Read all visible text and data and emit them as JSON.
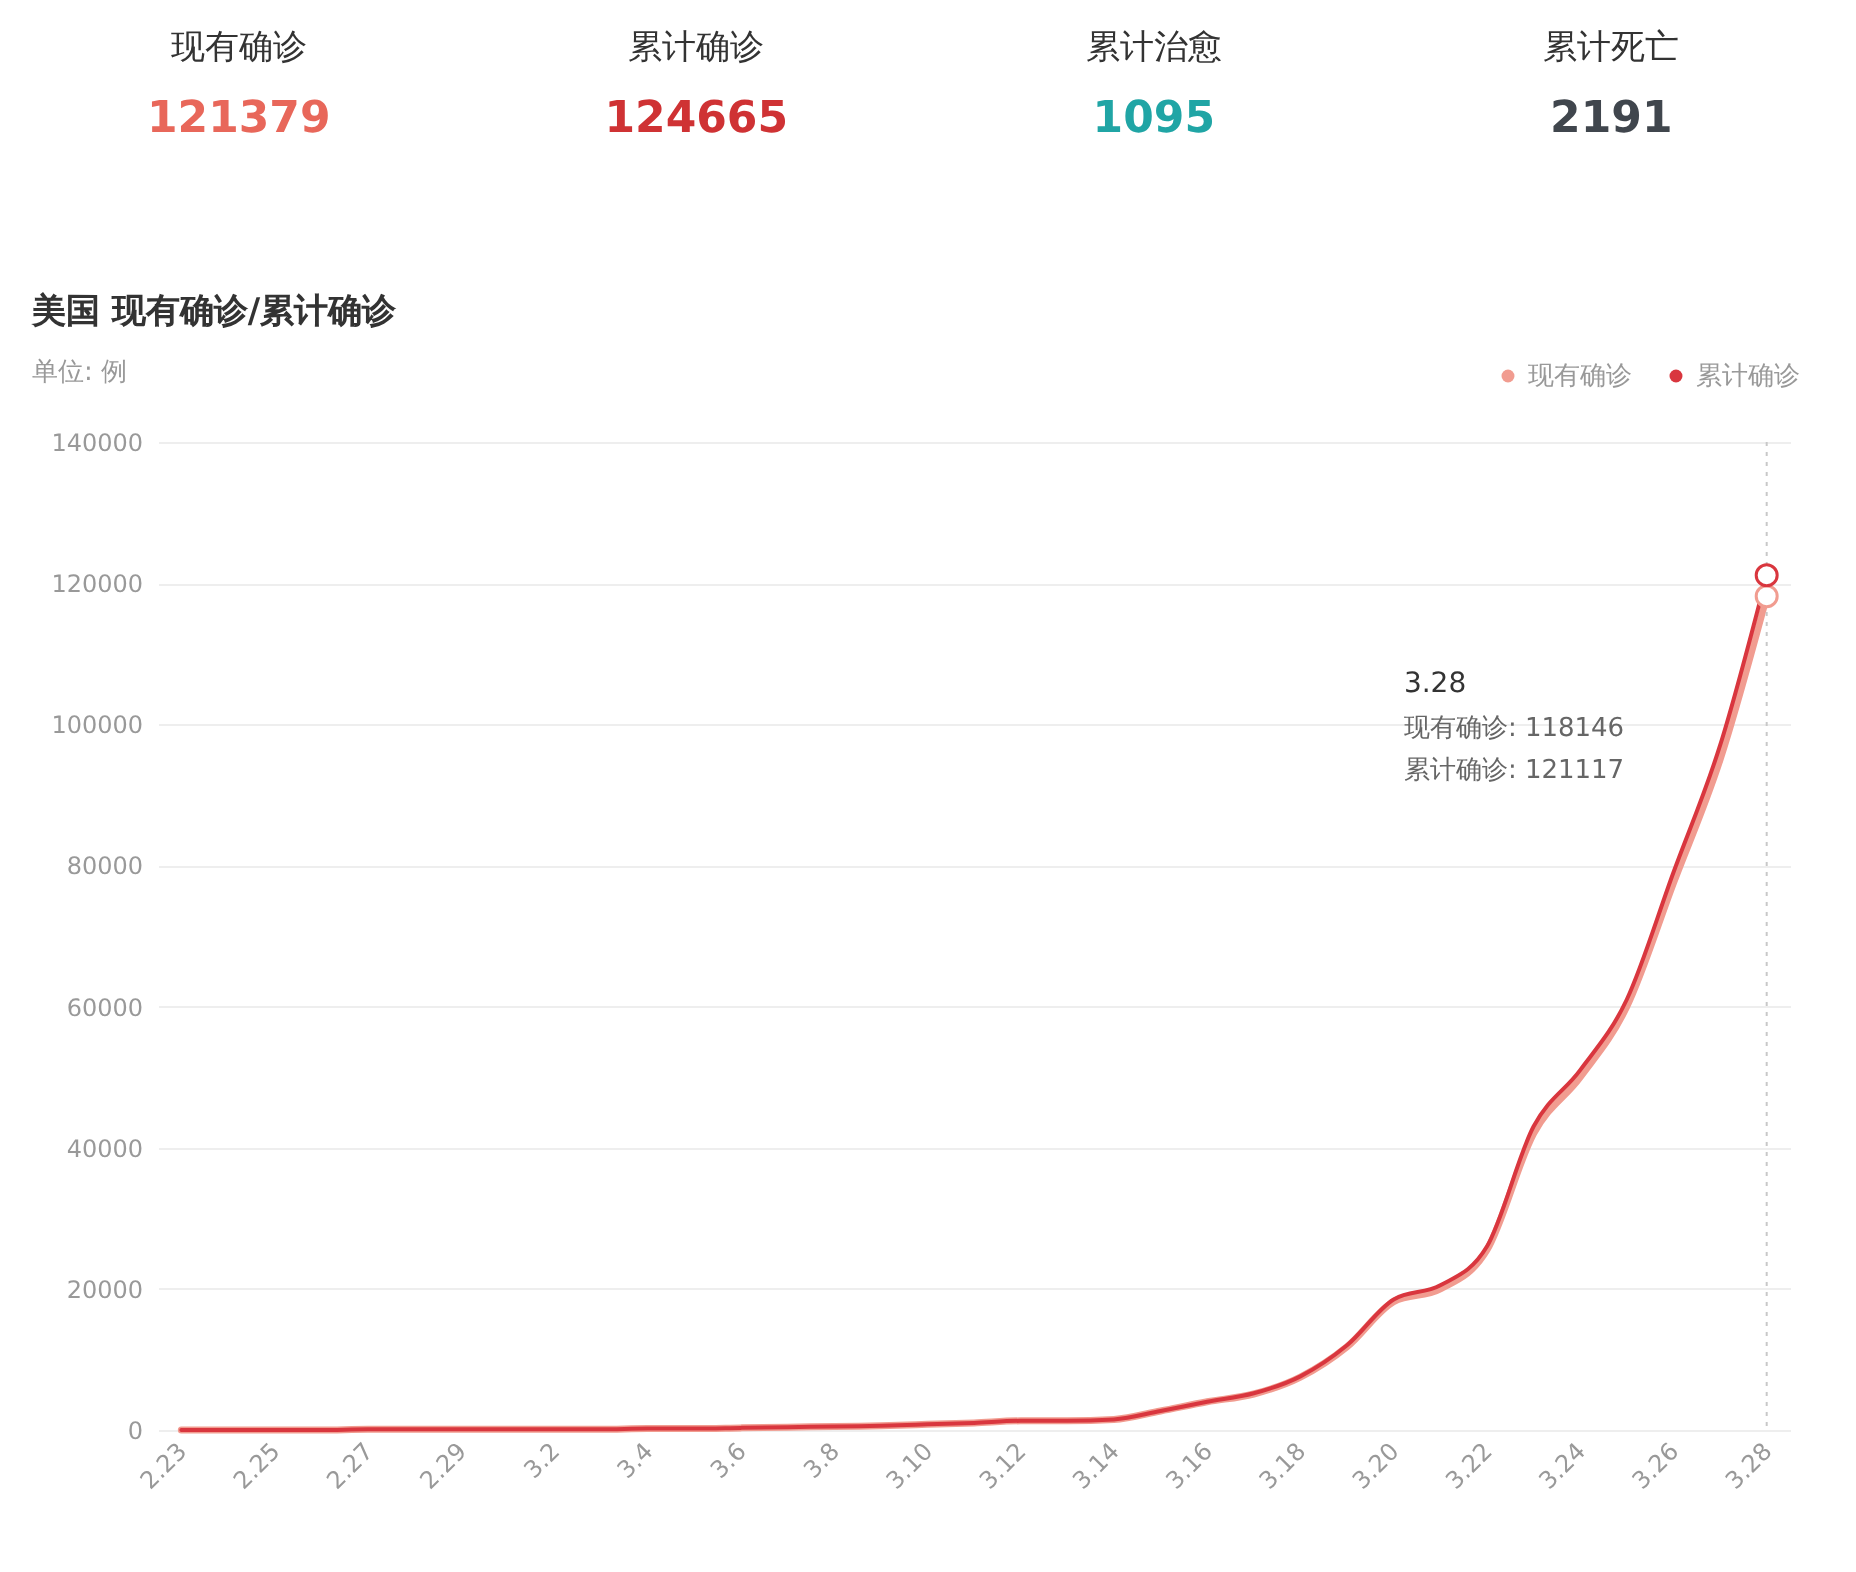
{
  "chart_data": [
    {
      "type": "other",
      "categories": [
        "现有确诊",
        "累计确诊",
        "累计治愈",
        "累计死亡"
      ],
      "values": [
        121379,
        124665,
        1095,
        2191
      ],
      "colors": [
        "#e8675a",
        "#cf3234",
        "#20a5a5",
        "#40464d"
      ],
      "data_labels": true
    },
    {
      "type": "line",
      "title": "美国 现有确诊/累计确诊",
      "subtitle": "单位: 例",
      "categories": [
        "2.23",
        null,
        "2.25",
        null,
        "2.27",
        null,
        "2.29",
        null,
        "3.2",
        null,
        "3.4",
        null,
        "3.6",
        null,
        "3.8",
        null,
        "3.10",
        null,
        "3.12",
        null,
        "3.14",
        null,
        "3.16",
        null,
        "3.18",
        null,
        "3.20",
        null,
        "3.22",
        null,
        "3.24",
        null,
        "3.26",
        null,
        "3.28"
      ],
      "series": [
        {
          "name": "现有确诊",
          "color": "#f19c90",
          "values": [
            0,
            0,
            0,
            0,
            100,
            100,
            100,
            100,
            100,
            100,
            200,
            200,
            300,
            400,
            500,
            600,
            800,
            1000,
            1300,
            1300,
            1500,
            2700,
            4000,
            5100,
            7500,
            11800,
            18200,
            20000,
            25500,
            42000,
            50000,
            60000,
            77500,
            95000,
            118146
          ]
        },
        {
          "name": "累计确诊",
          "color": "#d9363e",
          "values": [
            0,
            0,
            0,
            0,
            100,
            100,
            100,
            100,
            100,
            100,
            200,
            200,
            300,
            400,
            500,
            600,
            800,
            1000,
            1300,
            1300,
            1500,
            2700,
            4000,
            5200,
            7600,
            12000,
            18500,
            20500,
            26000,
            43000,
            51000,
            61000,
            79000,
            97000,
            121117
          ]
        }
      ],
      "ylim": [
        0,
        140000
      ],
      "yticks": [
        0,
        20000,
        40000,
        60000,
        80000,
        100000,
        120000,
        140000
      ],
      "grid": "y",
      "legend": "top right",
      "line_style": "solid",
      "ref_lines": [
        {
          "axis": "x",
          "value": "3.28",
          "color": "#c8c8c8",
          "line_style": "dotted"
        }
      ],
      "annotations": [
        "现有确诊: 118146",
        "累计确诊: 121117"
      ]
    }
  ]
}
